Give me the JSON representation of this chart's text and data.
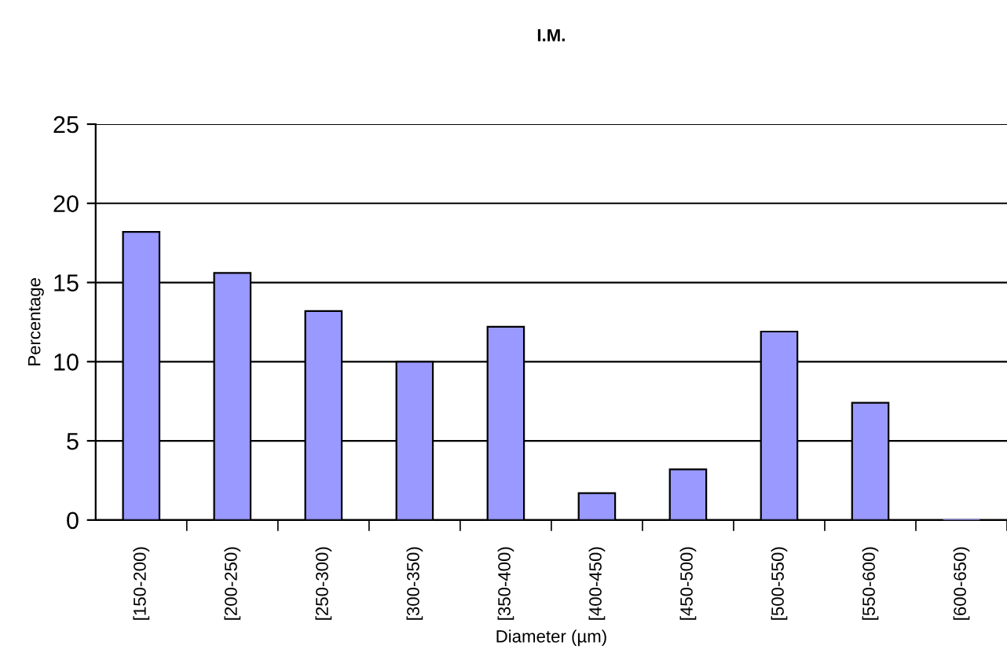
{
  "chart_data": {
    "type": "bar",
    "title": "I.M.",
    "xlabel": "Diameter (µm)",
    "ylabel": "Percentage",
    "categories": [
      "[150-200)",
      "[200-250)",
      "[250-300)",
      "[300-350)",
      "[350-400)",
      "[400-450)",
      "[450-500)",
      "[500-550)",
      "[550-600)",
      "[600-650)"
    ],
    "values": [
      18.2,
      15.6,
      13.2,
      10.0,
      12.2,
      1.7,
      3.2,
      11.9,
      7.4,
      0
    ],
    "color": "#9999ff",
    "ylim": [
      0,
      25
    ],
    "yticks": [
      0,
      5,
      10,
      15,
      20,
      25
    ],
    "grid": "y",
    "legend": false
  }
}
